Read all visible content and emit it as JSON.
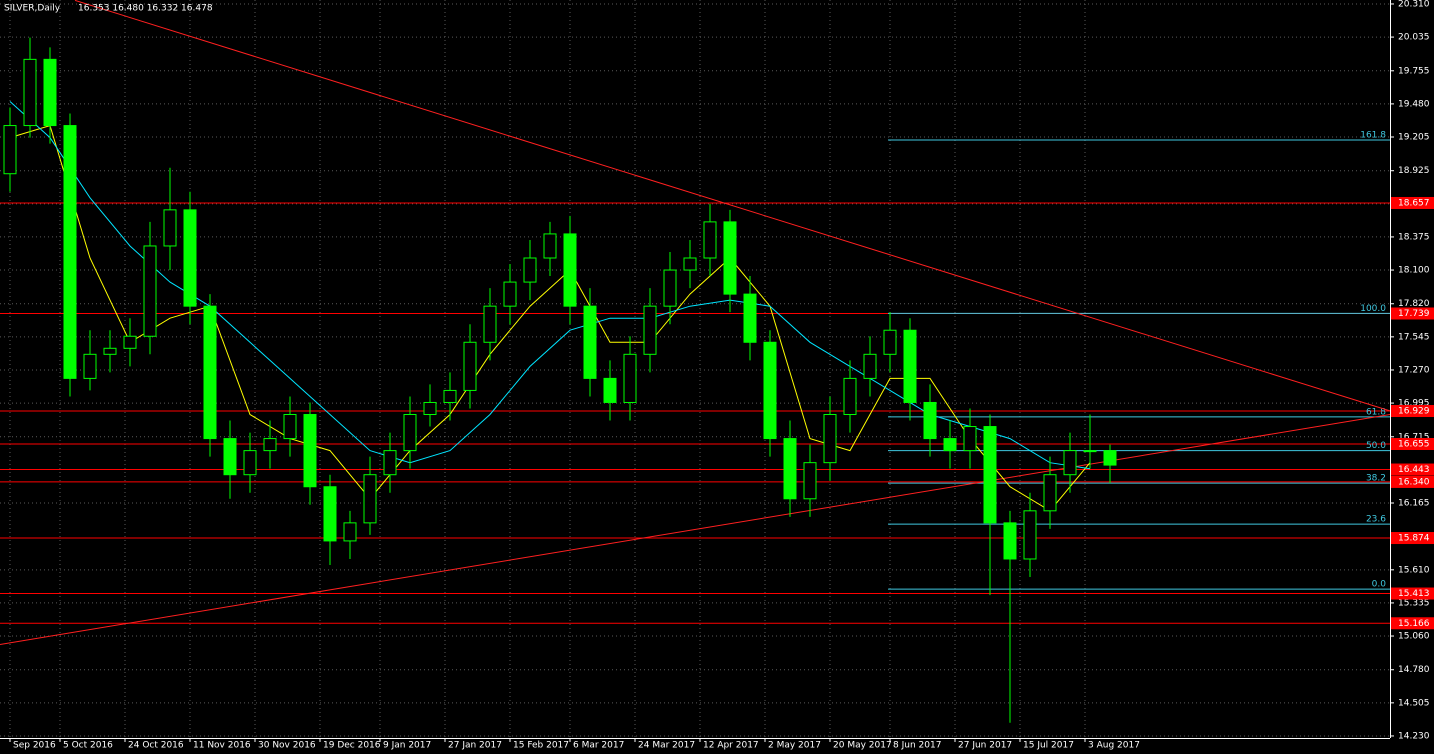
{
  "chart_data": {
    "type": "candlestick",
    "title": "SILVER,Daily",
    "quote": "16.353 16.480 16.332 16.478",
    "xlim": [
      0,
      278
    ],
    "ylim": [
      14.213,
      20.343
    ],
    "grid": true,
    "candle_color": "#00ff00",
    "xticks": [
      {
        "value": 2,
        "label": "Sep 2016"
      },
      {
        "value": 12,
        "label": "5 Oct 2016"
      },
      {
        "value": 25,
        "label": "24 Oct 2016"
      },
      {
        "value": 38,
        "label": "11 Nov 2016"
      },
      {
        "value": 51,
        "label": "30 Nov 2016"
      },
      {
        "value": 64,
        "label": "19 Dec 2016"
      },
      {
        "value": 76,
        "label": "9 Jan 2017"
      },
      {
        "value": 89,
        "label": "27 Jan 2017"
      },
      {
        "value": 102,
        "label": "15 Feb 2017"
      },
      {
        "value": 114,
        "label": "6 Mar 2017"
      },
      {
        "value": 127,
        "label": "24 Mar 2017"
      },
      {
        "value": 140,
        "label": "12 Apr 2017"
      },
      {
        "value": 153,
        "label": "2 May 2017"
      },
      {
        "value": 166,
        "label": "20 May 2017"
      },
      {
        "value": 178,
        "label": "8 Jun 2017"
      },
      {
        "value": 191,
        "label": "27 Jun 2017"
      },
      {
        "value": 204,
        "label": "15 Jul 2017"
      },
      {
        "value": 217,
        "label": "3 Aug 2017"
      }
    ],
    "yticks": [
      {
        "value": 20.31,
        "label": "20.310"
      },
      {
        "value": 20.035,
        "label": "20.035"
      },
      {
        "value": 19.755,
        "label": "19.755"
      },
      {
        "value": 19.48,
        "label": "19.480"
      },
      {
        "value": 19.205,
        "label": "19.205"
      },
      {
        "value": 18.925,
        "label": "18.925"
      },
      {
        "value": 18.65,
        "label": "18.650"
      },
      {
        "value": 18.375,
        "label": "18.375"
      },
      {
        "value": 18.1,
        "label": "18.100"
      },
      {
        "value": 17.82,
        "label": "17.820"
      },
      {
        "value": 17.545,
        "label": "17.545"
      },
      {
        "value": 17.27,
        "label": "17.270"
      },
      {
        "value": 16.995,
        "label": "16.995"
      },
      {
        "value": 16.715,
        "label": "16.715"
      },
      {
        "value": 16.165,
        "label": "16.165"
      },
      {
        "value": 15.61,
        "label": "15.610"
      },
      {
        "value": 15.335,
        "label": "15.335"
      },
      {
        "value": 15.06,
        "label": "15.060"
      },
      {
        "value": 14.78,
        "label": "14.780"
      },
      {
        "value": 14.505,
        "label": "14.505"
      },
      {
        "value": 14.23,
        "label": "14.230"
      }
    ],
    "candles": {
      "x": [
        2,
        6,
        10,
        14,
        18,
        22,
        26,
        30,
        34,
        38,
        42,
        46,
        50,
        54,
        58,
        62,
        66,
        70,
        74,
        78,
        82,
        86,
        90,
        94,
        98,
        102,
        106,
        110,
        114,
        118,
        122,
        126,
        130,
        134,
        138,
        142,
        146,
        150,
        154,
        158,
        162,
        166,
        170,
        174,
        178,
        182,
        186,
        190,
        194,
        198,
        202,
        206,
        210,
        214,
        218,
        222
      ],
      "open": [
        18.9,
        19.3,
        19.85,
        19.3,
        17.2,
        17.4,
        17.45,
        17.55,
        18.3,
        18.6,
        17.8,
        16.7,
        16.4,
        16.6,
        16.7,
        16.9,
        16.3,
        15.85,
        16.0,
        16.4,
        16.6,
        16.9,
        17.0,
        17.1,
        17.5,
        17.8,
        18.0,
        18.2,
        18.4,
        17.8,
        17.2,
        17.0,
        17.4,
        17.8,
        18.1,
        18.2,
        18.5,
        17.9,
        17.5,
        16.7,
        16.2,
        16.5,
        16.9,
        17.2,
        17.4,
        17.6,
        17.0,
        16.7,
        16.6,
        16.8,
        16.0,
        15.7,
        16.1,
        16.4,
        16.6,
        16.6
      ],
      "high": [
        19.45,
        20.03,
        19.95,
        19.4,
        17.6,
        17.6,
        17.7,
        18.5,
        18.95,
        18.75,
        17.9,
        16.85,
        16.75,
        16.85,
        17.05,
        17.0,
        16.4,
        16.1,
        16.55,
        16.75,
        17.05,
        17.15,
        17.25,
        17.65,
        17.95,
        18.15,
        18.35,
        18.5,
        18.55,
        17.95,
        17.35,
        17.55,
        17.95,
        18.25,
        18.35,
        18.65,
        18.6,
        18.05,
        17.6,
        16.85,
        16.65,
        17.05,
        17.35,
        17.55,
        17.75,
        17.7,
        17.15,
        16.85,
        16.95,
        16.9,
        16.1,
        16.25,
        16.55,
        16.75,
        16.9,
        16.65
      ],
      "low": [
        18.75,
        19.2,
        19.15,
        17.05,
        17.1,
        17.25,
        17.3,
        17.4,
        18.1,
        17.65,
        16.55,
        16.2,
        16.25,
        16.45,
        16.55,
        16.15,
        15.65,
        15.7,
        15.9,
        16.25,
        16.45,
        16.8,
        16.85,
        16.95,
        17.35,
        17.65,
        17.85,
        18.05,
        17.65,
        17.05,
        16.85,
        16.85,
        17.25,
        17.65,
        17.95,
        18.05,
        17.75,
        17.35,
        16.55,
        16.05,
        16.05,
        16.35,
        16.75,
        17.05,
        17.25,
        16.85,
        16.55,
        16.45,
        16.45,
        15.4,
        14.34,
        15.55,
        15.95,
        16.25,
        16.45,
        16.33
      ],
      "close": [
        19.3,
        19.85,
        19.3,
        17.2,
        17.4,
        17.45,
        17.55,
        18.3,
        18.6,
        17.8,
        16.7,
        16.4,
        16.6,
        16.7,
        16.9,
        16.3,
        15.85,
        16.0,
        16.4,
        16.6,
        16.9,
        17.0,
        17.1,
        17.5,
        17.8,
        18.0,
        18.2,
        18.4,
        17.8,
        17.2,
        17.0,
        17.4,
        17.8,
        18.1,
        18.2,
        18.5,
        17.9,
        17.5,
        16.7,
        16.2,
        16.5,
        16.9,
        17.2,
        17.4,
        17.6,
        17.0,
        16.7,
        16.6,
        16.8,
        16.0,
        15.7,
        16.1,
        16.4,
        16.6,
        16.6,
        16.48
      ]
    },
    "series": [
      {
        "color": "#ffff00",
        "x": [
          2,
          10,
          18,
          26,
          34,
          42,
          50,
          58,
          66,
          74,
          82,
          90,
          98,
          106,
          114,
          122,
          130,
          138,
          146,
          154,
          162,
          170,
          178,
          186,
          194,
          202,
          210,
          218
        ],
        "values": [
          19.2,
          19.3,
          18.2,
          17.5,
          17.7,
          17.8,
          16.9,
          16.7,
          16.6,
          16.2,
          16.6,
          16.9,
          17.4,
          17.8,
          18.1,
          17.5,
          17.5,
          17.9,
          18.2,
          17.8,
          16.7,
          16.6,
          17.2,
          17.2,
          16.7,
          16.3,
          16.1,
          16.5
        ]
      },
      {
        "color": "#00e5ff",
        "x": [
          2,
          10,
          18,
          26,
          34,
          42,
          50,
          58,
          66,
          74,
          82,
          90,
          98,
          106,
          114,
          122,
          130,
          138,
          146,
          154,
          162,
          170,
          178,
          186,
          194,
          202,
          210,
          218
        ],
        "values": [
          19.5,
          19.2,
          18.7,
          18.3,
          18.0,
          17.8,
          17.5,
          17.2,
          16.9,
          16.6,
          16.5,
          16.6,
          16.9,
          17.3,
          17.6,
          17.7,
          17.7,
          17.8,
          17.85,
          17.8,
          17.5,
          17.3,
          17.1,
          16.9,
          16.8,
          16.7,
          16.5,
          16.45
        ]
      }
    ],
    "levels": {
      "color": "#ff0000",
      "values": [
        {
          "value": 18.657,
          "label": "18.657"
        },
        {
          "value": 17.739,
          "label": "17.739"
        },
        {
          "value": 16.929,
          "label": "16.929"
        },
        {
          "value": 16.655,
          "label": "16.655"
        },
        {
          "value": 16.443,
          "label": "16.443"
        },
        {
          "value": 16.34,
          "label": "16.340"
        },
        {
          "value": 15.874,
          "label": "15.874"
        },
        {
          "value": 15.413,
          "label": "15.413"
        },
        {
          "value": 15.166,
          "label": "15.166"
        }
      ]
    },
    "fibonacci": {
      "color": "#40c8e0",
      "x_start": 177.6,
      "levels": [
        {
          "label": "161.8",
          "price": 19.18
        },
        {
          "label": "100.0",
          "price": 17.74
        },
        {
          "label": "61.8",
          "price": 16.88
        },
        {
          "label": "50.0",
          "price": 16.6
        },
        {
          "label": "38.2",
          "price": 16.33
        },
        {
          "label": "23.6",
          "price": 15.99
        },
        {
          "label": "0.0",
          "price": 15.45
        }
      ]
    },
    "trend_lines": {
      "color": "#ff2020",
      "lines": [
        {
          "points": [
            [
              15,
              20.34
            ],
            [
              278,
              16.93
            ]
          ]
        },
        {
          "points": [
            [
              0,
              14.99
            ],
            [
              278,
              16.9
            ]
          ]
        }
      ]
    }
  }
}
